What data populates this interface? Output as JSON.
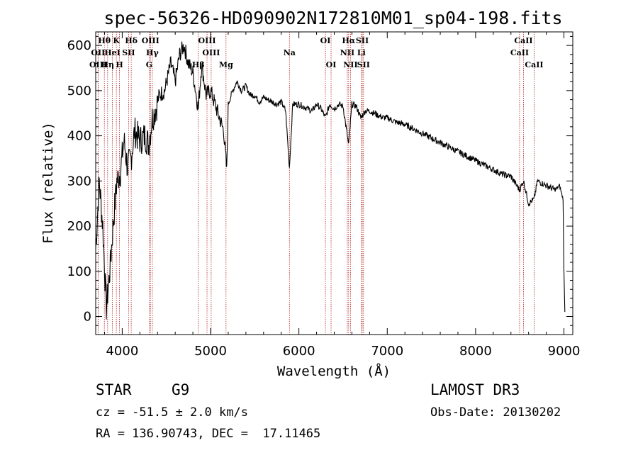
{
  "chart_data": {
    "type": "line",
    "title": "spec-56326-HD090902N172810M01_sp04-198.fits",
    "xlabel": "Wavelength (Å)",
    "ylabel": "Flux (relative)",
    "xlim": [
      3700,
      9100
    ],
    "ylim": [
      -40,
      630
    ],
    "xticks": [
      4000,
      5000,
      6000,
      7000,
      8000,
      9000
    ],
    "yticks": [
      0,
      100,
      200,
      300,
      400,
      500,
      600
    ],
    "series": [
      {
        "name": "flux",
        "x": [
          3700,
          3740,
          3780,
          3820,
          3860,
          3900,
          3940,
          3980,
          4020,
          4060,
          4100,
          4140,
          4200,
          4260,
          4300,
          4340,
          4380,
          4420,
          4480,
          4550,
          4600,
          4650,
          4700,
          4750,
          4800,
          4861,
          4900,
          4950,
          5000,
          5050,
          5100,
          5150,
          5183,
          5200,
          5250,
          5300,
          5350,
          5400,
          5450,
          5500,
          5550,
          5600,
          5650,
          5700,
          5750,
          5800,
          5850,
          5893,
          5930,
          6000,
          6050,
          6100,
          6150,
          6200,
          6250,
          6300,
          6350,
          6400,
          6450,
          6500,
          6563,
          6600,
          6650,
          6700,
          6750,
          6800,
          6850,
          6900,
          6950,
          7000,
          7100,
          7200,
          7300,
          7400,
          7500,
          7600,
          7700,
          7800,
          7900,
          8000,
          8100,
          8200,
          8300,
          8400,
          8498,
          8542,
          8600,
          8662,
          8700,
          8800,
          8900,
          8950,
          8990,
          9000,
          9010
        ],
        "values": [
          150,
          300,
          200,
          20,
          100,
          210,
          300,
          320,
          390,
          330,
          350,
          410,
          390,
          400,
          380,
          440,
          460,
          490,
          500,
          560,
          520,
          580,
          600,
          560,
          540,
          460,
          560,
          490,
          500,
          470,
          440,
          410,
          320,
          470,
          500,
          520,
          500,
          510,
          490,
          490,
          475,
          485,
          480,
          475,
          470,
          475,
          455,
          330,
          470,
          470,
          465,
          460,
          455,
          470,
          460,
          440,
          470,
          460,
          470,
          465,
          380,
          470,
          465,
          440,
          455,
          455,
          450,
          445,
          440,
          440,
          430,
          425,
          415,
          405,
          395,
          385,
          375,
          365,
          355,
          345,
          335,
          325,
          315,
          310,
          280,
          300,
          250,
          260,
          300,
          290,
          280,
          290,
          260,
          100,
          10
        ]
      }
    ],
    "spectral_lines": [
      {
        "label": "Hθ",
        "wl": 3798,
        "row": 0
      },
      {
        "label": "OII",
        "wl": 3727,
        "row": 1
      },
      {
        "label": "OIII",
        "wl": 3728,
        "row": 2
      },
      {
        "label": "Hη",
        "wl": 3835,
        "row": 2
      },
      {
        "label": "HeI",
        "wl": 3889,
        "row": 1
      },
      {
        "label": "K",
        "wl": 3934,
        "row": 0
      },
      {
        "label": "H",
        "wl": 3969,
        "row": 2
      },
      {
        "label": "SII",
        "wl": 4072,
        "row": 1
      },
      {
        "label": "Hδ",
        "wl": 4102,
        "row": 0
      },
      {
        "label": "OIII",
        "wl": 4320,
        "row": 0
      },
      {
        "label": "Hγ",
        "wl": 4341,
        "row": 1
      },
      {
        "label": "G",
        "wl": 4305,
        "row": 2
      },
      {
        "label": "OIII",
        "wl": 4960,
        "row": 0
      },
      {
        "label": "OIII",
        "wl": 5007,
        "row": 1
      },
      {
        "label": "Hβ",
        "wl": 4861,
        "row": 2
      },
      {
        "label": "Mg",
        "wl": 5175,
        "row": 2
      },
      {
        "label": "Na",
        "wl": 5893,
        "row": 1
      },
      {
        "label": "OI",
        "wl": 6300,
        "row": 0
      },
      {
        "label": "OI",
        "wl": 6364,
        "row": 2
      },
      {
        "label": "Hα",
        "wl": 6563,
        "row": 0
      },
      {
        "label": "NII",
        "wl": 6548,
        "row": 1
      },
      {
        "label": "NII",
        "wl": 6584,
        "row": 2
      },
      {
        "label": "SII",
        "wl": 6717,
        "row": 0
      },
      {
        "label": "Li",
        "wl": 6708,
        "row": 1
      },
      {
        "label": "SII",
        "wl": 6731,
        "row": 2
      },
      {
        "label": "CaII",
        "wl": 8498,
        "row": 1
      },
      {
        "label": "CaII",
        "wl": 8542,
        "row": 0
      },
      {
        "label": "CaII",
        "wl": 8662,
        "row": 2
      }
    ]
  },
  "info": {
    "class_label": "STAR",
    "subclass": "G9",
    "survey": "LAMOST DR3",
    "cz": "cz = -51.5 ± 2.0 km/s",
    "obs_date": "Obs-Date: 20130202",
    "coords": "RA = 136.90743, DEC =  17.11465"
  },
  "colors": {
    "spectrum": "#000000",
    "line_marker": "#b22222"
  }
}
